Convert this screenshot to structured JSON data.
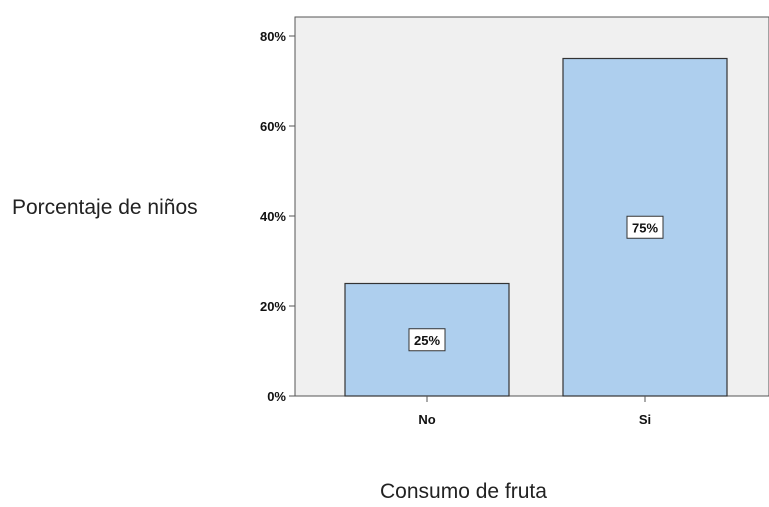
{
  "chart_data": {
    "type": "bar",
    "categories": [
      "No",
      "Si"
    ],
    "values": [
      25,
      75
    ],
    "value_labels": [
      "25%",
      "75%"
    ],
    "xlabel": "Consumo de fruta",
    "ylabel": "Porcentaje de niños",
    "yticks": [
      "0%",
      "20%",
      "40%",
      "60%",
      "80%"
    ],
    "ylim": [
      0,
      80
    ],
    "grid": false,
    "colors": {
      "bar": "#aecfee",
      "bar_edge": "#333333",
      "plot_bg": "#f0f0f0",
      "axis": "#555555"
    }
  }
}
